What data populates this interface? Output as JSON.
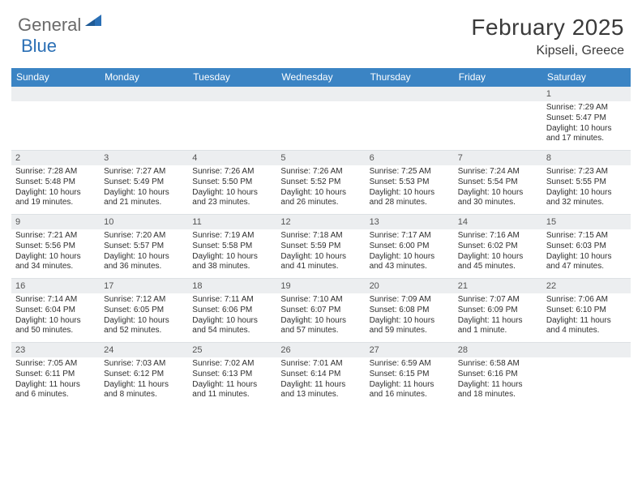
{
  "brand": {
    "general": "General",
    "blue": "Blue"
  },
  "title": "February 2025",
  "location": "Kipseli, Greece",
  "colors": {
    "header_bg": "#3b84c4",
    "header_text": "#ffffff",
    "daynum_bg": "#eceef0",
    "text": "#2f2f2f",
    "brand_gray": "#6a6a6a",
    "brand_blue": "#2a6fb5"
  },
  "day_names": [
    "Sunday",
    "Monday",
    "Tuesday",
    "Wednesday",
    "Thursday",
    "Friday",
    "Saturday"
  ],
  "layout": {
    "columns": 7,
    "cell_fontsize_pt": 7.5,
    "header_fontsize_pt": 9,
    "title_fontsize_pt": 21,
    "location_fontsize_pt": 12
  },
  "weeks": [
    [
      {
        "n": "",
        "empty": true
      },
      {
        "n": "",
        "empty": true
      },
      {
        "n": "",
        "empty": true
      },
      {
        "n": "",
        "empty": true
      },
      {
        "n": "",
        "empty": true
      },
      {
        "n": "",
        "empty": true
      },
      {
        "n": "1",
        "sunrise": "7:29 AM",
        "sunset": "5:47 PM",
        "daylight": "10 hours and 17 minutes."
      }
    ],
    [
      {
        "n": "2",
        "sunrise": "7:28 AM",
        "sunset": "5:48 PM",
        "daylight": "10 hours and 19 minutes."
      },
      {
        "n": "3",
        "sunrise": "7:27 AM",
        "sunset": "5:49 PM",
        "daylight": "10 hours and 21 minutes."
      },
      {
        "n": "4",
        "sunrise": "7:26 AM",
        "sunset": "5:50 PM",
        "daylight": "10 hours and 23 minutes."
      },
      {
        "n": "5",
        "sunrise": "7:26 AM",
        "sunset": "5:52 PM",
        "daylight": "10 hours and 26 minutes."
      },
      {
        "n": "6",
        "sunrise": "7:25 AM",
        "sunset": "5:53 PM",
        "daylight": "10 hours and 28 minutes."
      },
      {
        "n": "7",
        "sunrise": "7:24 AM",
        "sunset": "5:54 PM",
        "daylight": "10 hours and 30 minutes."
      },
      {
        "n": "8",
        "sunrise": "7:23 AM",
        "sunset": "5:55 PM",
        "daylight": "10 hours and 32 minutes."
      }
    ],
    [
      {
        "n": "9",
        "sunrise": "7:21 AM",
        "sunset": "5:56 PM",
        "daylight": "10 hours and 34 minutes."
      },
      {
        "n": "10",
        "sunrise": "7:20 AM",
        "sunset": "5:57 PM",
        "daylight": "10 hours and 36 minutes."
      },
      {
        "n": "11",
        "sunrise": "7:19 AM",
        "sunset": "5:58 PM",
        "daylight": "10 hours and 38 minutes."
      },
      {
        "n": "12",
        "sunrise": "7:18 AM",
        "sunset": "5:59 PM",
        "daylight": "10 hours and 41 minutes."
      },
      {
        "n": "13",
        "sunrise": "7:17 AM",
        "sunset": "6:00 PM",
        "daylight": "10 hours and 43 minutes."
      },
      {
        "n": "14",
        "sunrise": "7:16 AM",
        "sunset": "6:02 PM",
        "daylight": "10 hours and 45 minutes."
      },
      {
        "n": "15",
        "sunrise": "7:15 AM",
        "sunset": "6:03 PM",
        "daylight": "10 hours and 47 minutes."
      }
    ],
    [
      {
        "n": "16",
        "sunrise": "7:14 AM",
        "sunset": "6:04 PM",
        "daylight": "10 hours and 50 minutes."
      },
      {
        "n": "17",
        "sunrise": "7:12 AM",
        "sunset": "6:05 PM",
        "daylight": "10 hours and 52 minutes."
      },
      {
        "n": "18",
        "sunrise": "7:11 AM",
        "sunset": "6:06 PM",
        "daylight": "10 hours and 54 minutes."
      },
      {
        "n": "19",
        "sunrise": "7:10 AM",
        "sunset": "6:07 PM",
        "daylight": "10 hours and 57 minutes."
      },
      {
        "n": "20",
        "sunrise": "7:09 AM",
        "sunset": "6:08 PM",
        "daylight": "10 hours and 59 minutes."
      },
      {
        "n": "21",
        "sunrise": "7:07 AM",
        "sunset": "6:09 PM",
        "daylight": "11 hours and 1 minute."
      },
      {
        "n": "22",
        "sunrise": "7:06 AM",
        "sunset": "6:10 PM",
        "daylight": "11 hours and 4 minutes."
      }
    ],
    [
      {
        "n": "23",
        "sunrise": "7:05 AM",
        "sunset": "6:11 PM",
        "daylight": "11 hours and 6 minutes."
      },
      {
        "n": "24",
        "sunrise": "7:03 AM",
        "sunset": "6:12 PM",
        "daylight": "11 hours and 8 minutes."
      },
      {
        "n": "25",
        "sunrise": "7:02 AM",
        "sunset": "6:13 PM",
        "daylight": "11 hours and 11 minutes."
      },
      {
        "n": "26",
        "sunrise": "7:01 AM",
        "sunset": "6:14 PM",
        "daylight": "11 hours and 13 minutes."
      },
      {
        "n": "27",
        "sunrise": "6:59 AM",
        "sunset": "6:15 PM",
        "daylight": "11 hours and 16 minutes."
      },
      {
        "n": "28",
        "sunrise": "6:58 AM",
        "sunset": "6:16 PM",
        "daylight": "11 hours and 18 minutes."
      },
      {
        "n": "",
        "empty": true
      }
    ]
  ]
}
